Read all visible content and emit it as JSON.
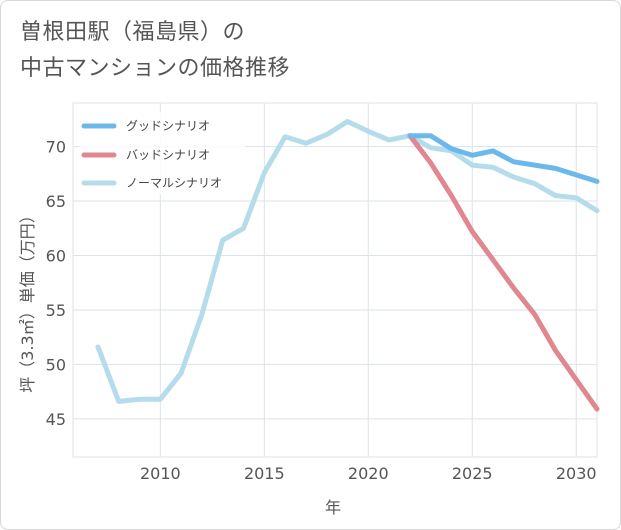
{
  "title": {
    "line1": "曽根田駅（福島県）の",
    "line2": "中古マンションの価格推移"
  },
  "chart_data": {
    "type": "line",
    "title": "曽根田駅（福島県）の中古マンションの価格推移",
    "xlabel": "年",
    "ylabel": "坪（3.3㎡）単価（万円）",
    "xlim": [
      2005.8,
      2031
    ],
    "ylim": [
      41.5,
      74
    ],
    "xticks": [
      2010,
      2015,
      2020,
      2025,
      2030
    ],
    "yticks": [
      45,
      50,
      55,
      60,
      65,
      70
    ],
    "grid": true,
    "legend_position": "top-left",
    "series": [
      {
        "name": "グッドシナリオ",
        "color": "#6cb8ec",
        "x": [
          2022,
          2023,
          2024,
          2025,
          2026,
          2027,
          2028,
          2029,
          2030,
          2031
        ],
        "values": [
          71.0,
          71.0,
          69.8,
          69.2,
          69.6,
          68.6,
          68.3,
          68.0,
          67.4,
          66.8
        ]
      },
      {
        "name": "バッドシナリオ",
        "color": "#e0878f",
        "x": [
          2022,
          2023,
          2024,
          2025,
          2026,
          2027,
          2028,
          2029,
          2030,
          2031
        ],
        "values": [
          71.0,
          68.5,
          65.5,
          62.2,
          59.6,
          57.0,
          54.6,
          51.3,
          48.6,
          45.9
        ]
      },
      {
        "name": "ノーマルシナリオ",
        "color": "#b5dcea",
        "x": [
          2007,
          2008,
          2009,
          2010,
          2011,
          2012,
          2013,
          2014,
          2015,
          2016,
          2017,
          2018,
          2019,
          2020,
          2021,
          2022,
          2023,
          2024,
          2025,
          2026,
          2027,
          2028,
          2029,
          2030,
          2031
        ],
        "values": [
          51.6,
          46.6,
          46.8,
          46.8,
          49.2,
          54.6,
          61.4,
          62.5,
          67.6,
          70.9,
          70.3,
          71.1,
          72.3,
          71.4,
          70.6,
          71.0,
          69.9,
          69.6,
          68.3,
          68.1,
          67.2,
          66.6,
          65.5,
          65.3,
          64.1
        ]
      }
    ]
  }
}
